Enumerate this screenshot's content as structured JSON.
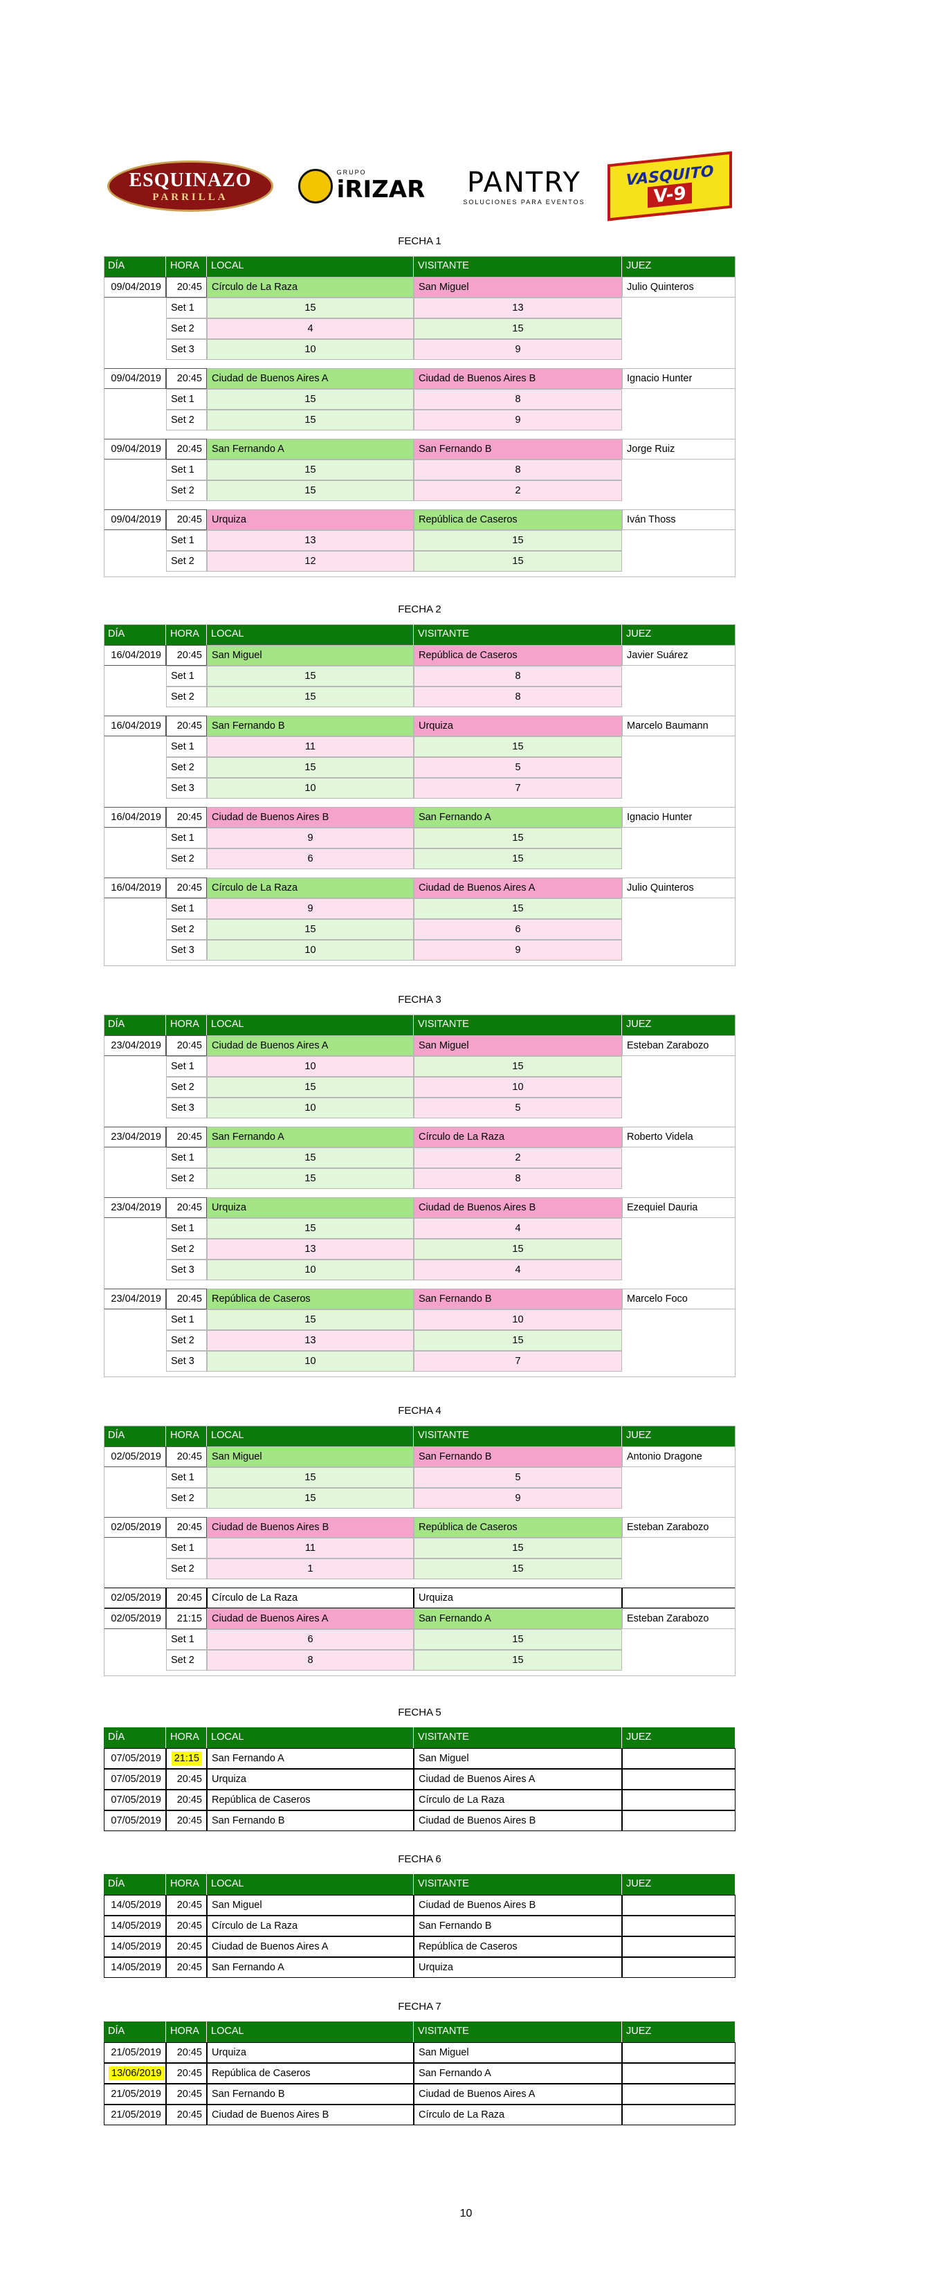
{
  "logos": {
    "esquinazo": {
      "name": "ESQUINAZO",
      "sub": "PARRILLA"
    },
    "irizar": {
      "sub": "GRUPO",
      "name": "iRIZAR"
    },
    "pantry": {
      "name": "PANTRY",
      "sub": "SOLUCIONES PARA EVENTOS"
    },
    "vasquito": {
      "name": "VASQUITO",
      "sub": "V-9"
    }
  },
  "columns": [
    "DÍA",
    "HORA",
    "LOCAL",
    "VISITANTE",
    "JUEZ"
  ],
  "colors": {
    "header": "#0b7a0b",
    "winner": "#a3e484",
    "loser": "#f5a3cb",
    "set_high": "#e2f6da",
    "set_low": "#fde1ee",
    "highlight": "#ffff00"
  },
  "fechas": [
    {
      "title": "FECHA 1",
      "matches": [
        {
          "dia": "09/04/2019",
          "hora": "20:45",
          "local": "Círculo de La Raza",
          "visitante": "San Miguel",
          "juez": "Julio Quinteros",
          "sets": [
            {
              "label": "Set 1",
              "local": 15,
              "visitante": 13
            },
            {
              "label": "Set 2",
              "local": 4,
              "visitante": 15
            },
            {
              "label": "Set 3",
              "local": 10,
              "visitante": 9
            }
          ]
        },
        {
          "dia": "09/04/2019",
          "hora": "20:45",
          "local": "Ciudad de Buenos Aires A",
          "visitante": "Ciudad de Buenos Aires B",
          "juez": "Ignacio Hunter",
          "sets": [
            {
              "label": "Set 1",
              "local": 15,
              "visitante": 8
            },
            {
              "label": "Set 2",
              "local": 15,
              "visitante": 9
            }
          ]
        },
        {
          "dia": "09/04/2019",
          "hora": "20:45",
          "local": "San Fernando A",
          "visitante": "San Fernando B",
          "juez": "Jorge Ruiz",
          "sets": [
            {
              "label": "Set 1",
              "local": 15,
              "visitante": 8
            },
            {
              "label": "Set 2",
              "local": 15,
              "visitante": 2
            }
          ]
        },
        {
          "dia": "09/04/2019",
          "hora": "20:45",
          "local": "Urquiza",
          "visitante": "República de Caseros",
          "juez": "Iván Thoss",
          "sets": [
            {
              "label": "Set 1",
              "local": 13,
              "visitante": 15
            },
            {
              "label": "Set 2",
              "local": 12,
              "visitante": 15
            }
          ]
        }
      ]
    },
    {
      "title": "FECHA 2",
      "matches": [
        {
          "dia": "16/04/2019",
          "hora": "20:45",
          "local": "San Miguel",
          "visitante": "República de Caseros",
          "juez": "Javier Suárez",
          "sets": [
            {
              "label": "Set 1",
              "local": 15,
              "visitante": 8
            },
            {
              "label": "Set 2",
              "local": 15,
              "visitante": 8
            }
          ]
        },
        {
          "dia": "16/04/2019",
          "hora": "20:45",
          "local": "San Fernando B",
          "visitante": "Urquiza",
          "juez": "Marcelo Baumann",
          "sets": [
            {
              "label": "Set 1",
              "local": 11,
              "visitante": 15
            },
            {
              "label": "Set 2",
              "local": 15,
              "visitante": 5
            },
            {
              "label": "Set 3",
              "local": 10,
              "visitante": 7
            }
          ]
        },
        {
          "dia": "16/04/2019",
          "hora": "20:45",
          "local": "Ciudad de Buenos Aires B",
          "visitante": "San Fernando A",
          "juez": "Ignacio Hunter",
          "sets": [
            {
              "label": "Set 1",
              "local": 9,
              "visitante": 15
            },
            {
              "label": "Set 2",
              "local": 6,
              "visitante": 15
            }
          ]
        },
        {
          "dia": "16/04/2019",
          "hora": "20:45",
          "local": "Círculo de La Raza",
          "visitante": "Ciudad de Buenos Aires A",
          "juez": "Julio Quinteros",
          "sets": [
            {
              "label": "Set 1",
              "local": 9,
              "visitante": 15
            },
            {
              "label": "Set 2",
              "local": 15,
              "visitante": 6
            },
            {
              "label": "Set 3",
              "local": 10,
              "visitante": 9
            }
          ]
        }
      ]
    },
    {
      "title": "FECHA 3",
      "matches": [
        {
          "dia": "23/04/2019",
          "hora": "20:45",
          "local": "Ciudad de Buenos Aires A",
          "visitante": "San Miguel",
          "juez": "Esteban Zarabozo",
          "sets": [
            {
              "label": "Set 1",
              "local": 10,
              "visitante": 15
            },
            {
              "label": "Set 2",
              "local": 15,
              "visitante": 10
            },
            {
              "label": "Set 3",
              "local": 10,
              "visitante": 5
            }
          ]
        },
        {
          "dia": "23/04/2019",
          "hora": "20:45",
          "local": "San Fernando A",
          "visitante": "Círculo de La Raza",
          "juez": "Roberto Videla",
          "sets": [
            {
              "label": "Set 1",
              "local": 15,
              "visitante": 2
            },
            {
              "label": "Set 2",
              "local": 15,
              "visitante": 8
            }
          ]
        },
        {
          "dia": "23/04/2019",
          "hora": "20:45",
          "local": "Urquiza",
          "visitante": "Ciudad de Buenos Aires B",
          "juez": "Ezequiel Dauria",
          "sets": [
            {
              "label": "Set 1",
              "local": 15,
              "visitante": 4
            },
            {
              "label": "Set 2",
              "local": 13,
              "visitante": 15
            },
            {
              "label": "Set 3",
              "local": 10,
              "visitante": 4
            }
          ]
        },
        {
          "dia": "23/04/2019",
          "hora": "20:45",
          "local": "República de Caseros",
          "visitante": "San Fernando B",
          "juez": "Marcelo Foco",
          "sets": [
            {
              "label": "Set 1",
              "local": 15,
              "visitante": 10
            },
            {
              "label": "Set 2",
              "local": 13,
              "visitante": 15
            },
            {
              "label": "Set 3",
              "local": 10,
              "visitante": 7
            }
          ]
        }
      ]
    },
    {
      "title": "FECHA 4",
      "matches": [
        {
          "dia": "02/05/2019",
          "hora": "20:45",
          "local": "San Miguel",
          "visitante": "San Fernando B",
          "juez": "Antonio Dragone",
          "sets": [
            {
              "label": "Set 1",
              "local": 15,
              "visitante": 5
            },
            {
              "label": "Set 2",
              "local": 15,
              "visitante": 9
            }
          ]
        },
        {
          "dia": "02/05/2019",
          "hora": "20:45",
          "local": "Ciudad de Buenos Aires B",
          "visitante": "República de Caseros",
          "juez": "Esteban Zarabozo",
          "sets": [
            {
              "label": "Set 1",
              "local": 11,
              "visitante": 15
            },
            {
              "label": "Set 2",
              "local": 1,
              "visitante": 15
            }
          ]
        },
        {
          "dia": "02/05/2019",
          "hora": "20:45",
          "local": "Círculo de La Raza",
          "visitante": "Urquiza"
        },
        {
          "dia": "02/05/2019",
          "hora": "21:15",
          "local": "Ciudad de Buenos Aires A",
          "visitante": "San Fernando A",
          "juez": "Esteban Zarabozo",
          "sets": [
            {
              "label": "Set 1",
              "local": 6,
              "visitante": 15
            },
            {
              "label": "Set 2",
              "local": 8,
              "visitante": 15
            }
          ]
        }
      ]
    },
    {
      "title": "FECHA 5",
      "matches": [
        {
          "dia": "07/05/2019",
          "hora": "21:15",
          "local": "San Fernando A",
          "visitante": "San Miguel",
          "highlight": [
            "hora"
          ]
        },
        {
          "dia": "07/05/2019",
          "hora": "20:45",
          "local": "Urquiza",
          "visitante": "Ciudad de Buenos Aires A"
        },
        {
          "dia": "07/05/2019",
          "hora": "20:45",
          "local": "República de Caseros",
          "visitante": "Círculo de La Raza"
        },
        {
          "dia": "07/05/2019",
          "hora": "20:45",
          "local": "San Fernando B",
          "visitante": "Ciudad de Buenos Aires B"
        }
      ]
    },
    {
      "title": "FECHA 6",
      "matches": [
        {
          "dia": "14/05/2019",
          "hora": "20:45",
          "local": "San Miguel",
          "visitante": "Ciudad de Buenos Aires B"
        },
        {
          "dia": "14/05/2019",
          "hora": "20:45",
          "local": "Círculo de La Raza",
          "visitante": "San Fernando B"
        },
        {
          "dia": "14/05/2019",
          "hora": "20:45",
          "local": "Ciudad de Buenos Aires A",
          "visitante": "República de Caseros"
        },
        {
          "dia": "14/05/2019",
          "hora": "20:45",
          "local": "San Fernando A",
          "visitante": "Urquiza"
        }
      ]
    },
    {
      "title": "FECHA 7",
      "matches": [
        {
          "dia": "21/05/2019",
          "hora": "20:45",
          "local": "Urquiza",
          "visitante": "San Miguel"
        },
        {
          "dia": "13/06/2019",
          "hora": "20:45",
          "local": "República de Caseros",
          "visitante": "San Fernando A",
          "highlight": [
            "dia"
          ]
        },
        {
          "dia": "21/05/2019",
          "hora": "20:45",
          "local": "San Fernando B",
          "visitante": "Ciudad de Buenos Aires A"
        },
        {
          "dia": "21/05/2019",
          "hora": "20:45",
          "local": "Ciudad de Buenos Aires B",
          "visitante": "Círculo de La Raza"
        }
      ]
    }
  ],
  "page_number": "10"
}
